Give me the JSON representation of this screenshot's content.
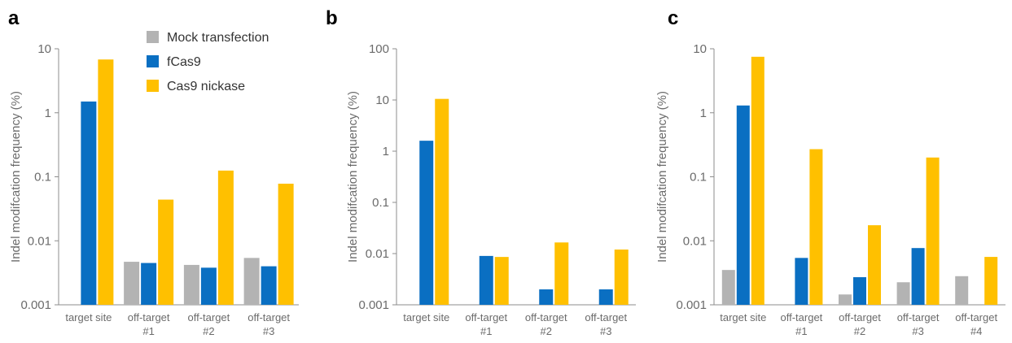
{
  "colors": {
    "mock": "#b3b3b3",
    "fcas9": "#0a6fc2",
    "nickase": "#ffc000",
    "axis": "#8c8c8c",
    "text": "#6b6b6b"
  },
  "legend": [
    {
      "label": "Mock transfection",
      "color_key": "mock"
    },
    {
      "label": "fCas9",
      "color_key": "fcas9"
    },
    {
      "label": "Cas9 nickase",
      "color_key": "nickase"
    }
  ],
  "chart_data": [
    {
      "panel": "a",
      "type": "bar",
      "yscale": "log",
      "ylim": [
        0.001,
        10
      ],
      "yticks": [
        "10",
        "1",
        "0.1",
        "0.01",
        "0.001"
      ],
      "ylabel": "Indel modifcation frequency (%)",
      "categories": [
        "target site",
        "off-target\n#1",
        "off-target\n#2",
        "off-target\n#3"
      ],
      "series": [
        {
          "name": "Mock transfection",
          "values": [
            null,
            0.0047,
            0.0042,
            0.0054
          ]
        },
        {
          "name": "fCas9",
          "values": [
            1.5,
            0.0045,
            0.0038,
            0.004
          ]
        },
        {
          "name": "Cas9 nickase",
          "values": [
            6.8,
            0.044,
            0.125,
            0.078
          ]
        }
      ]
    },
    {
      "panel": "b",
      "type": "bar",
      "yscale": "log",
      "ylim": [
        0.001,
        100
      ],
      "yticks": [
        "100",
        "10",
        "1",
        "0.1",
        "0.01",
        "0.001"
      ],
      "ylabel": "Indel modifcation frequency (%)",
      "categories": [
        "target site",
        "off-target\n#1",
        "off-target\n#2",
        "off-target\n#3"
      ],
      "series": [
        {
          "name": "Mock transfection",
          "values": [
            null,
            null,
            null,
            null
          ]
        },
        {
          "name": "fCas9",
          "values": [
            1.6,
            0.009,
            0.002,
            0.002
          ]
        },
        {
          "name": "Cas9 nickase",
          "values": [
            10.5,
            0.0086,
            0.0165,
            0.012
          ]
        }
      ]
    },
    {
      "panel": "c",
      "type": "bar",
      "yscale": "log",
      "ylim": [
        0.001,
        10
      ],
      "yticks": [
        "10",
        "1",
        "0.1",
        "0.01",
        "0.001"
      ],
      "ylabel": "Indel modifcation frequency (%)",
      "categories": [
        "target site",
        "off-target\n#1",
        "off-target\n#2",
        "off-target\n#3",
        "off-target\n#4"
      ],
      "series": [
        {
          "name": "Mock transfection",
          "values": [
            0.0035,
            null,
            0.00145,
            0.00225,
            0.0028
          ]
        },
        {
          "name": "fCas9",
          "values": [
            1.3,
            0.0054,
            0.0027,
            0.0077,
            null
          ]
        },
        {
          "name": "Cas9 nickase",
          "values": [
            7.5,
            0.27,
            0.0175,
            0.2,
            0.0056
          ]
        }
      ]
    }
  ]
}
